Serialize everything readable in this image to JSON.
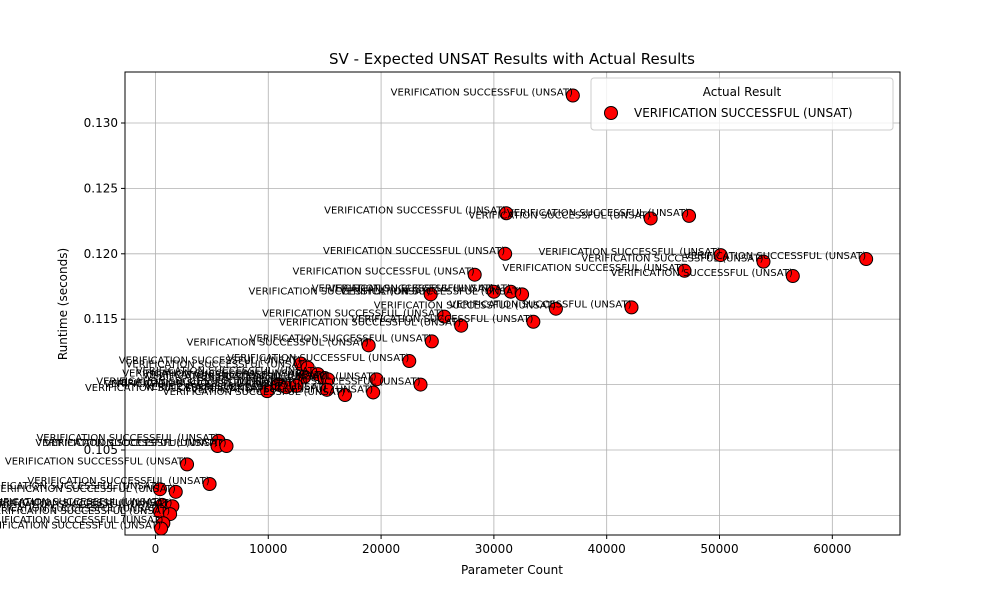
{
  "chart_data": {
    "type": "scatter",
    "title": "SV - Expected UNSAT Results with Actual Results",
    "xlabel": "Parameter Count",
    "ylabel": "Runtime (seconds)",
    "xlim": [
      -2700,
      66000
    ],
    "ylim": [
      0.0985,
      0.1339
    ],
    "xticks": [
      0,
      10000,
      20000,
      30000,
      40000,
      50000,
      60000
    ],
    "yticks": [
      0.1,
      0.105,
      0.11,
      0.115,
      0.12,
      0.125,
      0.13
    ],
    "ytick_labels": [
      "",
      "0.105",
      "",
      "0.115",
      "0.120",
      "0.125",
      "0.130"
    ],
    "grid": true,
    "legend": {
      "title": "Actual Result",
      "position": "top-right"
    },
    "series": [
      {
        "name": "VERIFICATION SUCCESSFUL (UNSAT)",
        "color": "#ff0000",
        "edge_color": "#000000",
        "point_label": "VERIFICATION SUCCESSFUL (UNSAT)",
        "points": [
          [
            37000,
            0.1321
          ],
          [
            31100,
            0.1231
          ],
          [
            43900,
            0.1227
          ],
          [
            47300,
            0.1229
          ],
          [
            31000,
            0.12
          ],
          [
            50100,
            0.1199
          ],
          [
            63000,
            0.1196
          ],
          [
            53900,
            0.1194
          ],
          [
            46900,
            0.1187
          ],
          [
            56500,
            0.1183
          ],
          [
            28300,
            0.1184
          ],
          [
            24400,
            0.1169
          ],
          [
            30000,
            0.1171
          ],
          [
            31500,
            0.1171
          ],
          [
            32500,
            0.1169
          ],
          [
            42200,
            0.1159
          ],
          [
            35500,
            0.1158
          ],
          [
            25600,
            0.1152
          ],
          [
            27100,
            0.1145
          ],
          [
            33500,
            0.1148
          ],
          [
            18900,
            0.113
          ],
          [
            24500,
            0.1133
          ],
          [
            22500,
            0.1118
          ],
          [
            12900,
            0.1116
          ],
          [
            13500,
            0.1113
          ],
          [
            13200,
            0.1106
          ],
          [
            14400,
            0.1108
          ],
          [
            15000,
            0.1105
          ],
          [
            15300,
            0.1104
          ],
          [
            19600,
            0.1104
          ],
          [
            10900,
            0.11
          ],
          [
            11600,
            0.1098
          ],
          [
            12500,
            0.1099
          ],
          [
            23500,
            0.11
          ],
          [
            9900,
            0.1095
          ],
          [
            15200,
            0.1096
          ],
          [
            16800,
            0.1092
          ],
          [
            19300,
            0.1094
          ],
          [
            5600,
            0.1057
          ],
          [
            5500,
            0.1053
          ],
          [
            6300,
            0.1053
          ],
          [
            2800,
            0.1039
          ],
          [
            4800,
            0.1024
          ],
          [
            400,
            0.102
          ],
          [
            1800,
            0.1018
          ],
          [
            600,
            0.1008
          ],
          [
            1100,
            0.1006
          ],
          [
            1500,
            0.1007
          ],
          [
            400,
            0.1003
          ],
          [
            1300,
            0.1001
          ],
          [
            700,
            0.0994
          ],
          [
            500,
            0.099
          ]
        ]
      }
    ]
  }
}
